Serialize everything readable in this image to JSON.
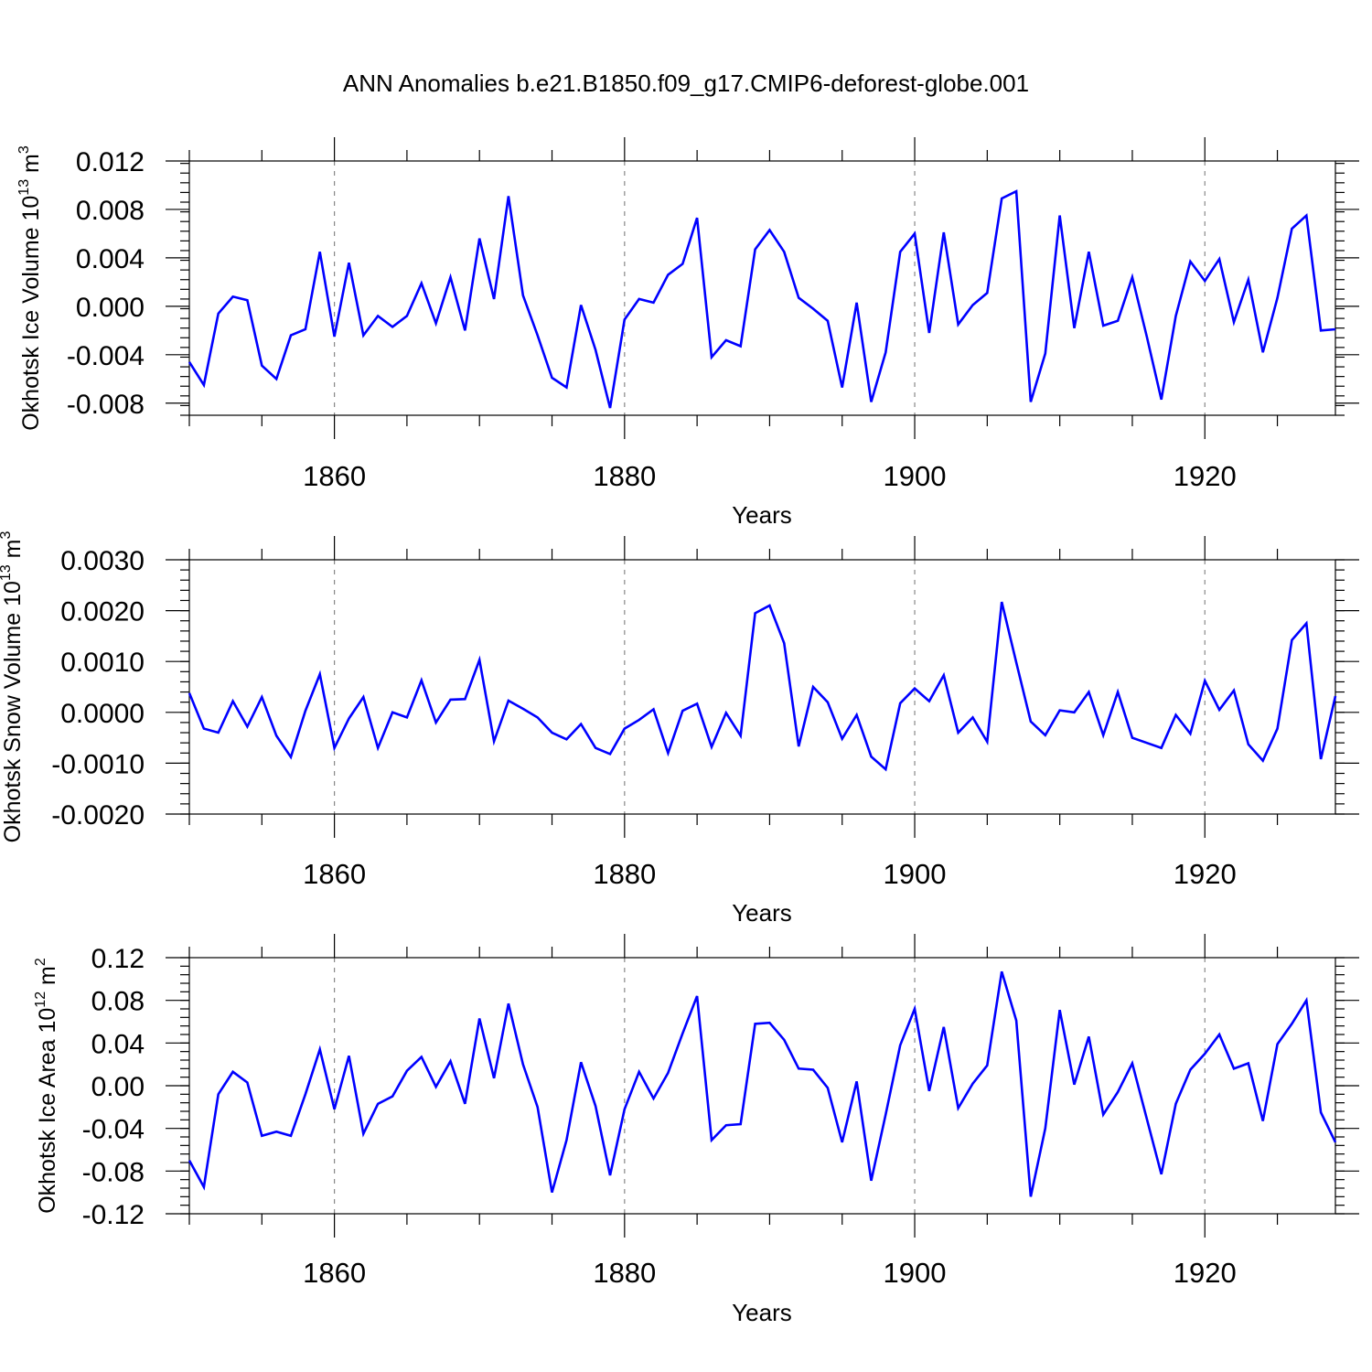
{
  "figure_title": "ANN Anomalies b.e21.B1850.f09_g17.CMIP6-deforest-globe.001",
  "colors": {
    "series": "#0000ff",
    "grid": "#888888",
    "axes": "#000000"
  },
  "chart_data": [
    {
      "type": "line",
      "ylabel": "Okhotsk Ice Volume 10",
      "ylabel_exp": "13",
      "ylabel_unit": " m",
      "ylabel_unit_exp": "3",
      "xlabel": "Years",
      "xlim": [
        1850,
        1929
      ],
      "ylim": [
        -0.009,
        0.012
      ],
      "yticks": [
        -0.008,
        -0.004,
        0.0,
        0.004,
        0.008,
        0.012
      ],
      "ytick_labels": [
        "-0.008",
        "-0.004",
        "0.000",
        "0.004",
        "0.008",
        "0.012"
      ],
      "xticks": [
        1860,
        1880,
        1900,
        1920
      ],
      "xtick_labels": [
        "1860",
        "1880",
        "1900",
        "1920"
      ],
      "x_start": 1850,
      "values": [
        -0.0046,
        -0.0065,
        -0.0006,
        0.0008,
        0.0005,
        -0.0049,
        -0.006,
        -0.0024,
        -0.0019,
        0.0045,
        -0.0025,
        0.0036,
        -0.0024,
        -0.0008,
        -0.0017,
        -0.0008,
        0.0019,
        -0.0014,
        0.0024,
        -0.002,
        0.0056,
        0.0006,
        0.0091,
        0.0009,
        -0.0024,
        -0.0059,
        -0.0067,
        0.0001,
        -0.0036,
        -0.0084,
        -0.0011,
        0.0006,
        0.0003,
        0.0026,
        0.0035,
        0.0073,
        -0.0042,
        -0.0028,
        -0.0033,
        0.0047,
        0.0063,
        0.0045,
        0.0007,
        -0.0002,
        -0.0012,
        -0.0067,
        0.0003,
        -0.0079,
        -0.0038,
        0.0045,
        0.006,
        -0.0022,
        0.0061,
        -0.0015,
        0.0001,
        0.0011,
        0.0089,
        0.0095,
        -0.0079,
        -0.0039,
        0.0075,
        -0.0018,
        0.0045,
        -0.0016,
        -0.0012,
        0.0024,
        -0.0025,
        -0.0077,
        -0.0008,
        0.0037,
        0.0021,
        0.0039,
        -0.0013,
        0.0022,
        -0.0038,
        0.0007,
        0.0064,
        0.0075,
        -0.002,
        -0.0019
      ]
    },
    {
      "type": "line",
      "ylabel": "Okhotsk Snow Volume 10",
      "ylabel_exp": "13",
      "ylabel_unit": " m",
      "ylabel_unit_exp": "3",
      "xlabel": "Years",
      "xlim": [
        1850,
        1929
      ],
      "ylim": [
        -0.002,
        0.003
      ],
      "yticks": [
        -0.002,
        -0.001,
        0.0,
        0.001,
        0.002,
        0.003
      ],
      "ytick_labels": [
        "-0.0020",
        "-0.0010",
        "0.0000",
        "0.0010",
        "0.0020",
        "0.0030"
      ],
      "xticks": [
        1860,
        1880,
        1900,
        1920
      ],
      "xtick_labels": [
        "1860",
        "1880",
        "1900",
        "1920"
      ],
      "x_start": 1850,
      "values": [
        0.00038,
        -0.00032,
        -0.0004,
        0.00022,
        -0.00028,
        0.0003,
        -0.00046,
        -0.00088,
        3e-05,
        0.00075,
        -0.0007,
        -0.00012,
        0.0003,
        -0.0007,
        0.0,
        -0.0001,
        0.00063,
        -0.0002,
        0.00025,
        0.00026,
        0.00103,
        -0.00057,
        0.00023,
        7e-05,
        -0.0001,
        -0.0004,
        -0.00053,
        -0.00023,
        -0.0007,
        -0.00082,
        -0.00032,
        -0.00015,
        6e-05,
        -0.0008,
        3e-05,
        0.00017,
        -0.00068,
        -1e-05,
        -0.00046,
        0.00195,
        0.0021,
        0.00136,
        -0.00067,
        0.0005,
        0.0002,
        -0.00052,
        -5e-05,
        -0.00087,
        -0.00112,
        0.00018,
        0.00047,
        0.00022,
        0.00073,
        -0.0004,
        -0.0001,
        -0.00058,
        0.00217,
        0.00098,
        -0.00018,
        -0.00045,
        4e-05,
        0.0,
        0.0004,
        -0.00045,
        0.0004,
        -0.0005,
        -0.0006,
        -0.0007,
        -5e-05,
        -0.00042,
        0.00062,
        5e-05,
        0.00043,
        -0.00063,
        -0.00095,
        -0.00032,
        0.00142,
        0.00175,
        -0.00092,
        0.00032
      ]
    },
    {
      "type": "line",
      "ylabel": "Okhotsk Ice Area 10",
      "ylabel_exp": "12",
      "ylabel_unit": " m",
      "ylabel_unit_exp": "2",
      "xlabel": "Years",
      "xlim": [
        1850,
        1929
      ],
      "ylim": [
        -0.12,
        0.12
      ],
      "yticks": [
        -0.12,
        -0.08,
        -0.04,
        0.0,
        0.04,
        0.08,
        0.12
      ],
      "ytick_labels": [
        "-0.12",
        "-0.08",
        "-0.04",
        "0.00",
        "0.04",
        "0.08",
        "0.12"
      ],
      "xticks": [
        1860,
        1880,
        1900,
        1920
      ],
      "xtick_labels": [
        "1860",
        "1880",
        "1900",
        "1920"
      ],
      "x_start": 1850,
      "values": [
        -0.07,
        -0.095,
        -0.008,
        0.013,
        0.003,
        -0.047,
        -0.043,
        -0.047,
        -0.008,
        0.034,
        -0.022,
        0.028,
        -0.045,
        -0.017,
        -0.01,
        0.014,
        0.027,
        -0.001,
        0.023,
        -0.017,
        0.063,
        0.007,
        0.077,
        0.02,
        -0.02,
        -0.1,
        -0.051,
        0.022,
        -0.019,
        -0.084,
        -0.022,
        0.013,
        -0.012,
        0.012,
        0.049,
        0.084,
        -0.051,
        -0.037,
        -0.036,
        0.058,
        0.059,
        0.043,
        0.016,
        0.015,
        -0.002,
        -0.053,
        0.004,
        -0.089,
        -0.027,
        0.038,
        0.072,
        -0.005,
        0.055,
        -0.021,
        0.002,
        0.019,
        0.107,
        0.061,
        -0.104,
        -0.04,
        0.071,
        0.001,
        0.046,
        -0.027,
        -0.006,
        0.021,
        -0.031,
        -0.083,
        -0.017,
        0.015,
        0.03,
        0.048,
        0.016,
        0.021,
        -0.033,
        0.039,
        0.058,
        0.08,
        -0.025,
        -0.053
      ]
    }
  ]
}
